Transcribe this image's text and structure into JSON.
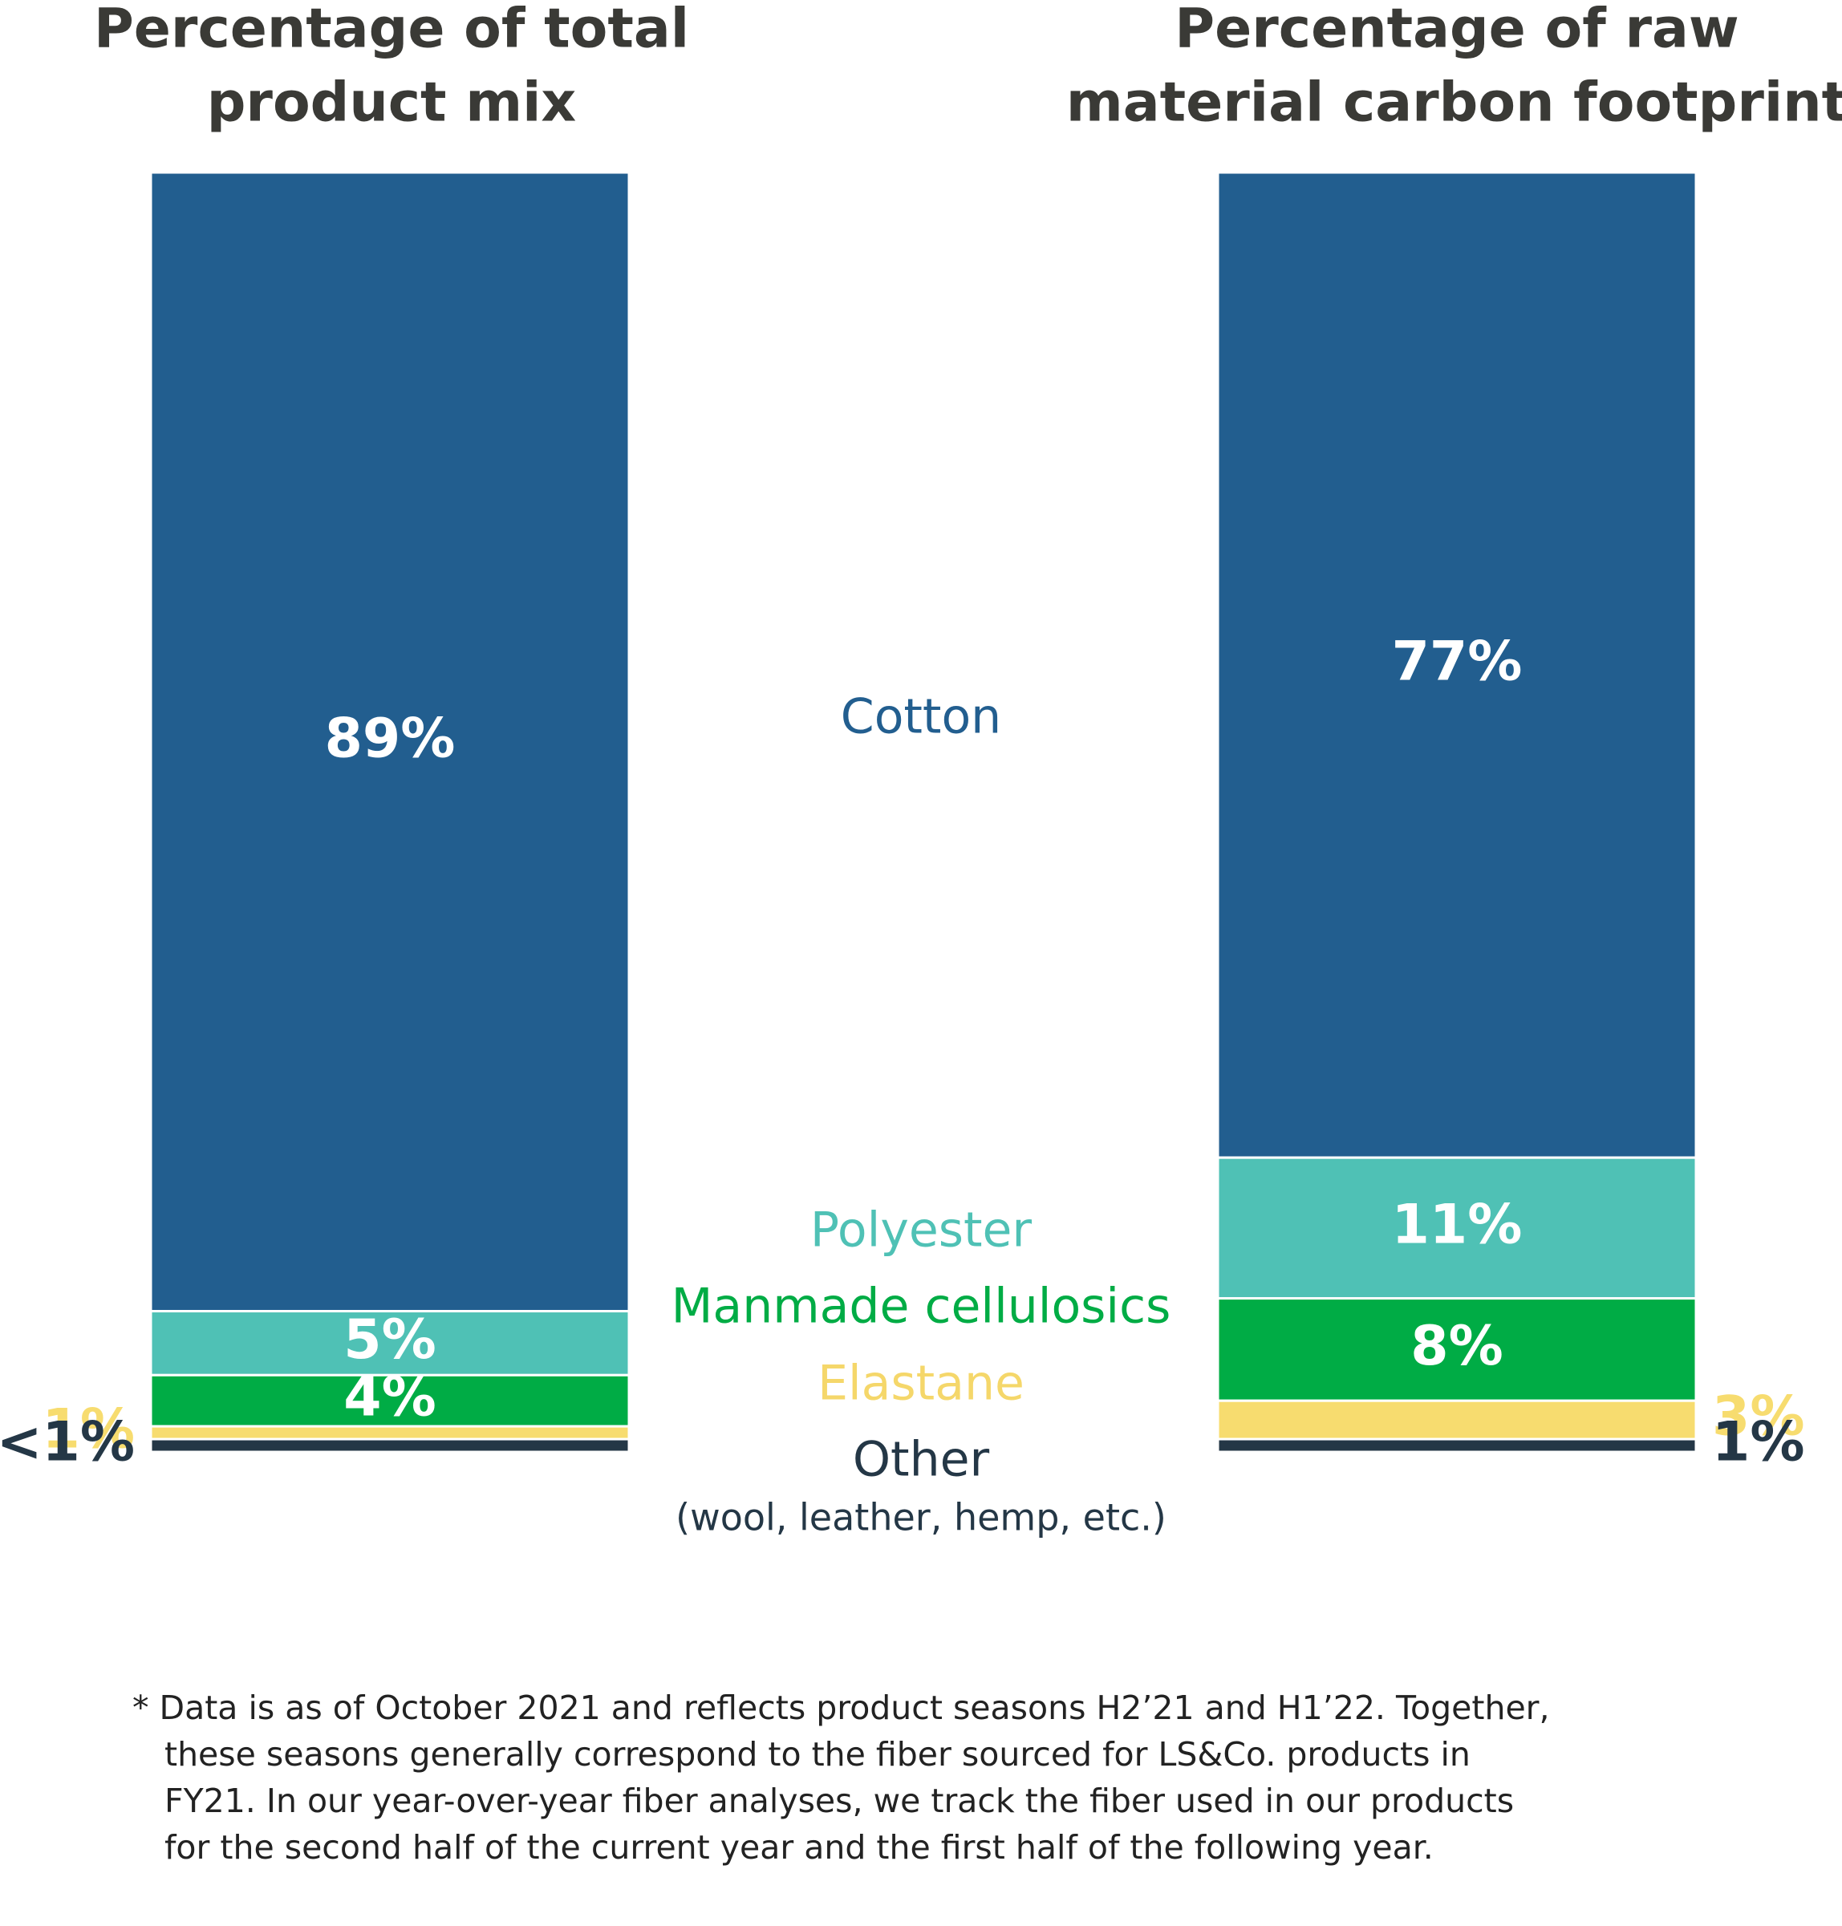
{
  "chart_data": {
    "type": "bar",
    "stacked": true,
    "categories": [
      "Percentage of total product mix",
      "Percentage of raw material carbon footprint"
    ],
    "series": [
      {
        "name": "Cotton",
        "values": [
          89,
          77
        ],
        "labels": [
          "89%",
          "77%"
        ],
        "color": "#225e8f",
        "label_color": "#ffffff"
      },
      {
        "name": "Polyester",
        "values": [
          5,
          11
        ],
        "labels": [
          "5%",
          "11%"
        ],
        "color": "#4fc1b5",
        "label_color": "#ffffff"
      },
      {
        "name": "Manmade cellulosics",
        "values": [
          4,
          8
        ],
        "labels": [
          "4%",
          "8%"
        ],
        "color": "#00ac45",
        "label_color": "#ffffff"
      },
      {
        "name": "Elastane",
        "values": [
          1,
          3
        ],
        "labels": [
          "1%",
          "3%"
        ],
        "color": "#f7dc6f",
        "label_color": "#f7dc6f"
      },
      {
        "name": "Other",
        "subname": "(wool, leather, hemp, etc.)",
        "values": [
          1,
          1
        ],
        "labels": [
          "<1%",
          "1%"
        ],
        "color": "#243746",
        "label_color": "#243746"
      }
    ],
    "panels": [
      {
        "title": [
          "Percentage of total",
          "product mix"
        ]
      },
      {
        "title": [
          "Percentage of raw",
          "material carbon footprint"
        ]
      }
    ],
    "legend": "center, between the two bars",
    "grid": false
  },
  "footnote": {
    "lines": [
      "* Data is as of October 2021 and reflects product seasons H2’21 and H1’22. Together,",
      "these seasons generally correspond to the fiber sourced for LS&Co. products in",
      "FY21. In our year-over-year fiber analyses, we track the fiber used in our products",
      "for the second half of the current year and the first half of the following year."
    ]
  },
  "colors": {
    "title_text": "#3a3a36",
    "footnote_text": "#222222"
  }
}
